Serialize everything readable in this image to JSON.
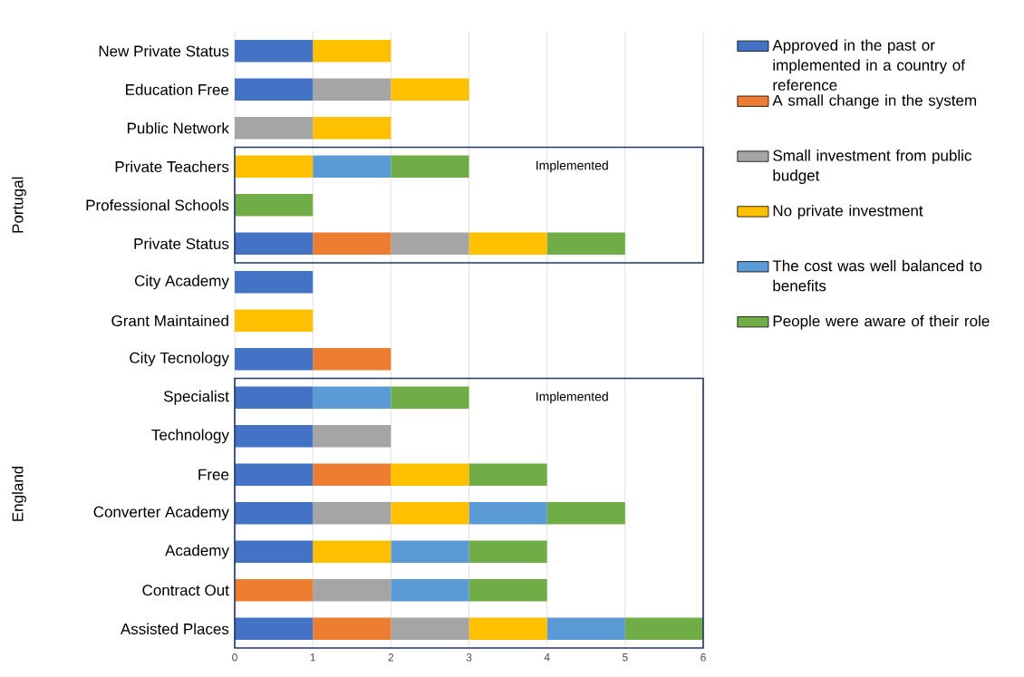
{
  "chart_data": {
    "type": "bar",
    "orientation": "horizontal",
    "stacked": true,
    "categories": [
      "New Private Status",
      "Education Free",
      "Public Network",
      "Private Teachers",
      "Professional Schools",
      "Private Status",
      "City Academy",
      "Grant Maintained",
      "City Tecnology",
      "Specialist",
      "Technology",
      "Free",
      "Converter Academy",
      "Academy",
      "Contract Out",
      "Assisted Places"
    ],
    "series": [
      {
        "name": "Approved in the past or implemented in a country of reference",
        "color": "#4472c4",
        "values": [
          1,
          1,
          null,
          null,
          null,
          1,
          1,
          null,
          1,
          1,
          1,
          1,
          1,
          1,
          null,
          1
        ]
      },
      {
        "name": "A small change in the system",
        "color": "#ed7d31",
        "values": [
          null,
          null,
          null,
          null,
          null,
          1,
          null,
          null,
          1,
          null,
          null,
          1,
          null,
          null,
          1,
          1
        ]
      },
      {
        "name": "Small investment from public budget",
        "color": "#a5a5a5",
        "values": [
          null,
          1,
          1,
          null,
          null,
          1,
          null,
          null,
          null,
          null,
          1,
          null,
          1,
          null,
          1,
          1
        ]
      },
      {
        "name": "No private investment",
        "color": "#ffc000",
        "values": [
          1,
          1,
          1,
          1,
          null,
          1,
          null,
          1,
          null,
          null,
          null,
          1,
          1,
          1,
          null,
          1
        ]
      },
      {
        "name": "The cost was well balanced to benefits",
        "color": "#5b9bd5",
        "values": [
          null,
          null,
          null,
          1,
          null,
          null,
          null,
          null,
          null,
          1,
          null,
          null,
          1,
          1,
          1,
          1
        ]
      },
      {
        "name": "People were aware of their role",
        "color": "#70ad47",
        "values": [
          null,
          null,
          null,
          1,
          1,
          1,
          null,
          null,
          null,
          1,
          null,
          1,
          1,
          1,
          1,
          1
        ]
      }
    ],
    "xlim": [
      0,
      6
    ],
    "xticks": [
      0,
      1,
      2,
      3,
      4,
      5,
      6
    ],
    "grid": "x",
    "legend": "right",
    "annotations": [
      "Portugal",
      "England",
      "Implemented",
      "Implemented"
    ]
  }
}
